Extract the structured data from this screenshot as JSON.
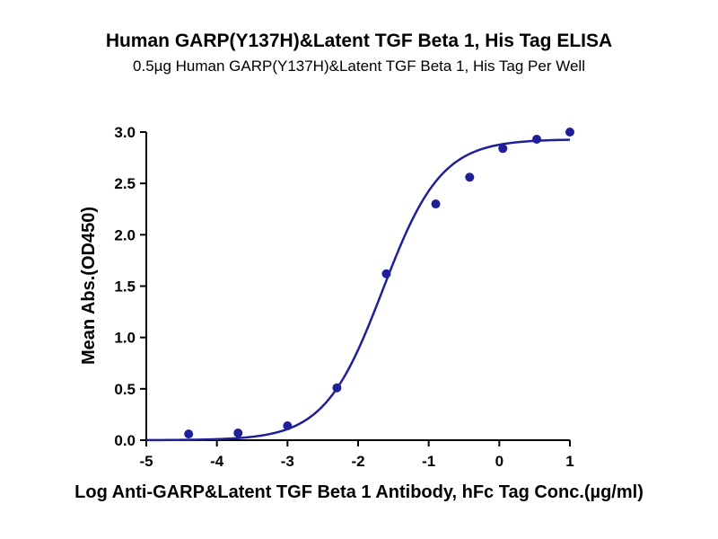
{
  "chart_data": {
    "type": "scatter",
    "title": "Human GARP(Y137H)&Latent TGF Beta 1, His Tag ELISA",
    "subtitle": "0.5µg Human GARP(Y137H)&Latent TGF Beta 1, His Tag Per Well",
    "xlabel": "Log Anti-GARP&Latent TGF Beta 1 Antibody, hFc Tag Conc.(µg/ml)",
    "ylabel": "Mean Abs.(OD450)",
    "xlim": [
      -5,
      1
    ],
    "ylim": [
      0,
      3.0
    ],
    "x_ticks": [
      -5,
      -4,
      -3,
      -2,
      -1,
      0,
      1
    ],
    "x_tick_labels": [
      "-5",
      "-4",
      "-3",
      "-2",
      "-1",
      "0",
      "1"
    ],
    "y_ticks": [
      0,
      0.5,
      1.0,
      1.5,
      2.0,
      2.5,
      3.0
    ],
    "y_tick_labels": [
      "0.0",
      "0.5",
      "1.0",
      "1.5",
      "2.0",
      "2.5",
      "3.0"
    ],
    "grid": false,
    "color": "#1f1f9a",
    "series": [
      {
        "points": [
          {
            "x": -4.4,
            "y": 0.06
          },
          {
            "x": -3.7,
            "y": 0.07
          },
          {
            "x": -3.0,
            "y": 0.14
          },
          {
            "x": -2.3,
            "y": 0.51
          },
          {
            "x": -1.6,
            "y": 1.62
          },
          {
            "x": -0.9,
            "y": 2.3
          },
          {
            "x": -0.42,
            "y": 2.56
          },
          {
            "x": 0.05,
            "y": 2.84
          },
          {
            "x": 0.53,
            "y": 2.93
          },
          {
            "x": 1.0,
            "y": 3.0
          }
        ],
        "fit": {
          "model": "4PL",
          "bottom": 0.0,
          "top": 2.93,
          "log_ec50": -1.65,
          "hill_slope": 1.05
        }
      }
    ]
  }
}
